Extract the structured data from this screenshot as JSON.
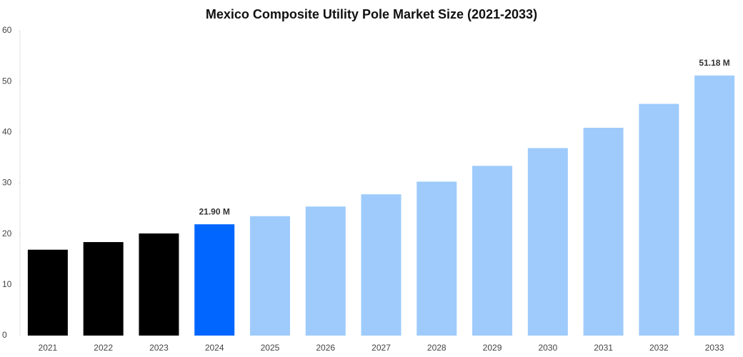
{
  "chart_data": {
    "type": "bar",
    "title": "Mexico Composite Utility Pole Market Size (2021-2033)",
    "categories": [
      "2021",
      "2022",
      "2023",
      "2024",
      "2025",
      "2026",
      "2027",
      "2028",
      "2029",
      "2030",
      "2031",
      "2032",
      "2033"
    ],
    "values": [
      16.9,
      18.4,
      20.1,
      21.9,
      23.5,
      25.4,
      27.8,
      30.3,
      33.4,
      36.9,
      40.9,
      45.6,
      51.18
    ],
    "value_labels": [
      null,
      null,
      null,
      "21.90 M",
      null,
      null,
      null,
      null,
      null,
      null,
      null,
      null,
      "51.18 M"
    ],
    "colors": [
      "#000000",
      "#000000",
      "#000000",
      "#0066ff",
      "#9ecbfc",
      "#9ecbfc",
      "#9ecbfc",
      "#9ecbfc",
      "#9ecbfc",
      "#9ecbfc",
      "#9ecbfc",
      "#9ecbfc",
      "#9ecbfc"
    ],
    "ylim": [
      0,
      60
    ],
    "yticks": [
      0,
      10,
      20,
      30,
      40,
      50,
      60
    ],
    "grid": false
  }
}
